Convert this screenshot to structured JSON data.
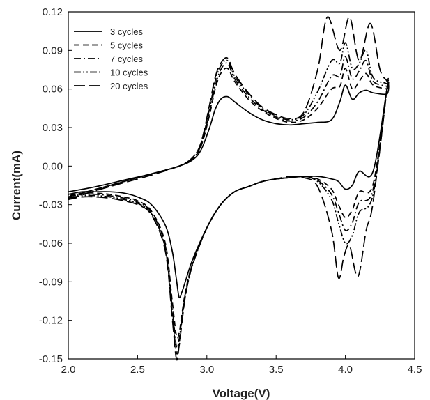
{
  "chart_data": {
    "type": "line",
    "title": "",
    "xlabel": "Voltage(V)",
    "ylabel": "Current(mA)",
    "xlim": [
      2.0,
      4.5
    ],
    "ylim": [
      -0.15,
      0.12
    ],
    "xticks": [
      "2.0",
      "2.5",
      "3.0",
      "3.5",
      "4.0",
      "4.5"
    ],
    "yticks": [
      "0.12",
      "0.09",
      "0.06",
      "0.03",
      "0.00",
      "-0.03",
      "-0.06",
      "-0.09",
      "-0.12",
      "-0.15"
    ],
    "grid": false,
    "legend_position": "top-left",
    "line_color": "#000000",
    "series": [
      {
        "name": "3 cycles",
        "dash": "solid",
        "anodic": {
          "x": [
            2.0,
            2.2,
            2.4,
            2.6,
            2.8,
            2.9,
            2.96,
            3.02,
            3.06,
            3.1,
            3.15,
            3.2,
            3.3,
            3.4,
            3.5,
            3.6,
            3.7,
            3.8,
            3.9,
            3.96,
            4.0,
            4.05,
            4.1,
            4.15,
            4.2,
            4.3
          ],
          "y": [
            -0.02,
            -0.016,
            -0.011,
            -0.006,
            0.0,
            0.005,
            0.013,
            0.03,
            0.044,
            0.052,
            0.054,
            0.05,
            0.042,
            0.036,
            0.033,
            0.032,
            0.033,
            0.034,
            0.036,
            0.05,
            0.063,
            0.052,
            0.057,
            0.059,
            0.057,
            0.056
          ]
        },
        "cathodic": {
          "x": [
            4.3,
            4.2,
            4.1,
            4.05,
            4.0,
            3.95,
            3.9,
            3.8,
            3.7,
            3.6,
            3.5,
            3.4,
            3.3,
            3.2,
            3.1,
            3.0,
            2.9,
            2.85,
            2.82,
            2.8,
            2.78,
            2.75,
            2.7,
            2.6,
            2.5,
            2.4,
            2.3,
            2.2,
            2.1,
            2.0
          ],
          "y": [
            0.06,
            -0.004,
            -0.004,
            -0.015,
            -0.018,
            -0.012,
            -0.01,
            -0.008,
            -0.008,
            -0.009,
            -0.01,
            -0.012,
            -0.016,
            -0.02,
            -0.03,
            -0.048,
            -0.072,
            -0.088,
            -0.098,
            -0.102,
            -0.088,
            -0.066,
            -0.046,
            -0.03,
            -0.024,
            -0.021,
            -0.02,
            -0.02,
            -0.02,
            -0.022
          ]
        }
      },
      {
        "name": "5 cycles",
        "dash": "8,5",
        "anodic": {
          "x": [
            2.0,
            2.2,
            2.4,
            2.6,
            2.8,
            2.9,
            2.96,
            3.02,
            3.06,
            3.1,
            3.15,
            3.2,
            3.3,
            3.4,
            3.5,
            3.6,
            3.7,
            3.8,
            3.9,
            3.96,
            4.0,
            4.05,
            4.1,
            4.15,
            4.2,
            4.3
          ],
          "y": [
            -0.024,
            -0.018,
            -0.012,
            -0.006,
            0.0,
            0.006,
            0.016,
            0.04,
            0.06,
            0.072,
            0.076,
            0.066,
            0.052,
            0.043,
            0.037,
            0.034,
            0.036,
            0.045,
            0.06,
            0.062,
            0.076,
            0.06,
            0.066,
            0.072,
            0.063,
            0.06
          ]
        },
        "cathodic": {
          "x": [
            4.3,
            4.2,
            4.1,
            4.05,
            4.0,
            3.95,
            3.9,
            3.8,
            3.7,
            3.6,
            3.5,
            3.4,
            3.3,
            3.2,
            3.1,
            3.0,
            2.9,
            2.85,
            2.82,
            2.8,
            2.78,
            2.75,
            2.7,
            2.6,
            2.5,
            2.4,
            2.3,
            2.2,
            2.1,
            2.0
          ],
          "y": [
            0.06,
            -0.014,
            -0.02,
            -0.034,
            -0.04,
            -0.03,
            -0.018,
            -0.01,
            -0.008,
            -0.009,
            -0.01,
            -0.012,
            -0.016,
            -0.02,
            -0.03,
            -0.048,
            -0.075,
            -0.095,
            -0.115,
            -0.13,
            -0.132,
            -0.105,
            -0.06,
            -0.035,
            -0.027,
            -0.024,
            -0.022,
            -0.021,
            -0.021,
            -0.023
          ]
        }
      },
      {
        "name": "7 cycles",
        "dash": "10,4,2,4",
        "anodic": {
          "x": [
            2.0,
            2.2,
            2.4,
            2.6,
            2.8,
            2.9,
            2.96,
            3.02,
            3.06,
            3.1,
            3.15,
            3.2,
            3.3,
            3.4,
            3.5,
            3.6,
            3.7,
            3.8,
            3.9,
            3.96,
            4.0,
            4.05,
            4.1,
            4.15,
            4.2,
            4.3
          ],
          "y": [
            -0.024,
            -0.018,
            -0.012,
            -0.006,
            0.0,
            0.006,
            0.017,
            0.042,
            0.062,
            0.075,
            0.08,
            0.068,
            0.054,
            0.044,
            0.038,
            0.035,
            0.038,
            0.05,
            0.07,
            0.07,
            0.085,
            0.068,
            0.074,
            0.082,
            0.066,
            0.062
          ]
        },
        "cathodic": {
          "x": [
            4.3,
            4.2,
            4.1,
            4.05,
            4.0,
            3.95,
            3.9,
            3.8,
            3.7,
            3.6,
            3.5,
            3.4,
            3.3,
            3.2,
            3.1,
            3.0,
            2.9,
            2.85,
            2.82,
            2.8,
            2.78,
            2.75,
            2.7,
            2.6,
            2.5,
            2.4,
            2.3,
            2.2,
            2.1,
            2.0
          ],
          "y": [
            0.06,
            -0.018,
            -0.028,
            -0.044,
            -0.05,
            -0.036,
            -0.022,
            -0.011,
            -0.008,
            -0.009,
            -0.01,
            -0.012,
            -0.016,
            -0.02,
            -0.03,
            -0.048,
            -0.075,
            -0.096,
            -0.118,
            -0.135,
            -0.14,
            -0.11,
            -0.062,
            -0.036,
            -0.028,
            -0.025,
            -0.023,
            -0.022,
            -0.022,
            -0.024
          ]
        }
      },
      {
        "name": "10 cycles",
        "dash": "10,3,2,3,2,3",
        "anodic": {
          "x": [
            2.0,
            2.2,
            2.4,
            2.6,
            2.8,
            2.9,
            2.96,
            3.02,
            3.06,
            3.1,
            3.15,
            3.2,
            3.3,
            3.4,
            3.5,
            3.6,
            3.7,
            3.8,
            3.9,
            3.96,
            4.0,
            4.05,
            4.1,
            4.15,
            4.2,
            4.3
          ],
          "y": [
            -0.025,
            -0.019,
            -0.012,
            -0.006,
            0.0,
            0.007,
            0.018,
            0.045,
            0.066,
            0.078,
            0.082,
            0.07,
            0.056,
            0.045,
            0.039,
            0.036,
            0.04,
            0.058,
            0.082,
            0.08,
            0.096,
            0.076,
            0.08,
            0.09,
            0.069,
            0.064
          ]
        },
        "cathodic": {
          "x": [
            4.3,
            4.2,
            4.1,
            4.05,
            4.0,
            3.95,
            3.9,
            3.8,
            3.7,
            3.6,
            3.5,
            3.4,
            3.3,
            3.2,
            3.1,
            3.0,
            2.9,
            2.85,
            2.82,
            2.8,
            2.78,
            2.75,
            2.7,
            2.6,
            2.5,
            2.4,
            2.3,
            2.2,
            2.1,
            2.0
          ],
          "y": [
            0.06,
            -0.022,
            -0.036,
            -0.054,
            -0.06,
            -0.044,
            -0.026,
            -0.012,
            -0.008,
            -0.009,
            -0.01,
            -0.012,
            -0.016,
            -0.02,
            -0.03,
            -0.048,
            -0.076,
            -0.098,
            -0.12,
            -0.138,
            -0.145,
            -0.115,
            -0.064,
            -0.037,
            -0.029,
            -0.026,
            -0.024,
            -0.023,
            -0.023,
            -0.025
          ]
        }
      },
      {
        "name": "20 cycles",
        "dash": "16,6",
        "anodic": {
          "x": [
            2.0,
            2.2,
            2.4,
            2.6,
            2.8,
            2.9,
            2.96,
            3.02,
            3.06,
            3.1,
            3.15,
            3.2,
            3.3,
            3.4,
            3.5,
            3.6,
            3.7,
            3.8,
            3.87,
            3.96,
            4.03,
            4.1,
            4.18,
            4.25,
            4.3
          ],
          "y": [
            -0.026,
            -0.019,
            -0.013,
            -0.007,
            0.0,
            0.007,
            0.019,
            0.048,
            0.069,
            0.08,
            0.084,
            0.072,
            0.057,
            0.046,
            0.04,
            0.037,
            0.042,
            0.075,
            0.116,
            0.09,
            0.116,
            0.082,
            0.111,
            0.075,
            0.066
          ]
        },
        "cathodic": {
          "x": [
            4.3,
            4.2,
            4.15,
            4.09,
            4.03,
            3.99,
            3.95,
            3.9,
            3.8,
            3.7,
            3.6,
            3.5,
            3.4,
            3.3,
            3.2,
            3.1,
            3.0,
            2.9,
            2.85,
            2.82,
            2.8,
            2.78,
            2.75,
            2.7,
            2.6,
            2.5,
            2.4,
            2.3,
            2.2,
            2.1,
            2.0
          ],
          "y": [
            0.06,
            -0.028,
            -0.05,
            -0.086,
            -0.062,
            -0.07,
            -0.087,
            -0.05,
            -0.016,
            -0.009,
            -0.008,
            -0.01,
            -0.012,
            -0.016,
            -0.02,
            -0.03,
            -0.048,
            -0.076,
            -0.098,
            -0.122,
            -0.14,
            -0.15,
            -0.118,
            -0.066,
            -0.038,
            -0.03,
            -0.027,
            -0.025,
            -0.024,
            -0.024,
            -0.026
          ]
        }
      }
    ]
  }
}
